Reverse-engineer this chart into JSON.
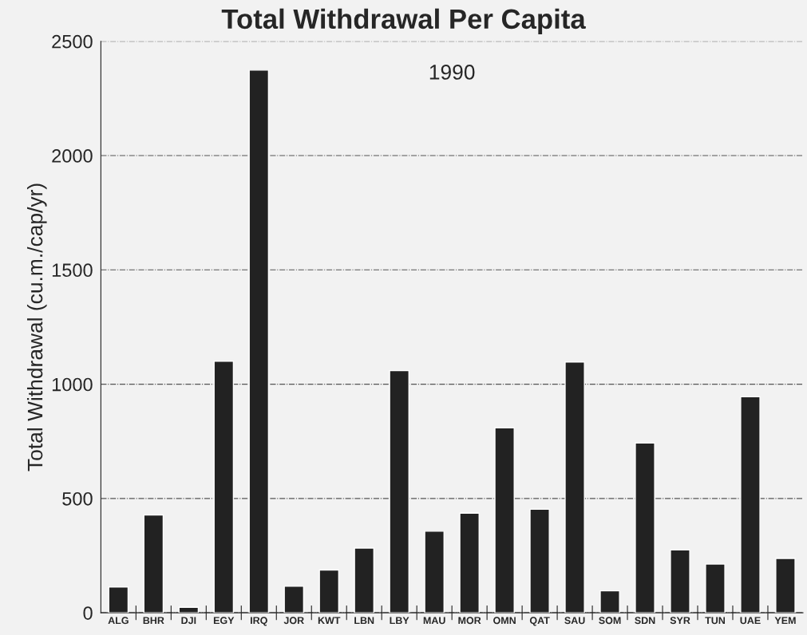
{
  "chart_data": {
    "type": "bar",
    "title": "Total Withdrawal Per Capita",
    "subtitle": "1990",
    "ylabel": "Total Withdrawal (cu.m./cap/yr)",
    "categories": [
      "ALG",
      "BHR",
      "DJI",
      "EGY",
      "IRQ",
      "JOR",
      "KWT",
      "LBN",
      "LBY",
      "MAU",
      "MOR",
      "OMN",
      "QAT",
      "SAU",
      "SOM",
      "SDN",
      "SYR",
      "TUN",
      "UAE",
      "YEM"
    ],
    "values": [
      113,
      428,
      24,
      1100,
      2374,
      116,
      187,
      283,
      1059,
      357,
      436,
      809,
      453,
      1097,
      96,
      743,
      275,
      213,
      945,
      238
    ],
    "color": "#222222",
    "ylim": [
      0,
      2500
    ],
    "yticks": [
      0,
      500,
      1000,
      1500,
      2000,
      2500
    ],
    "grid": "y"
  }
}
